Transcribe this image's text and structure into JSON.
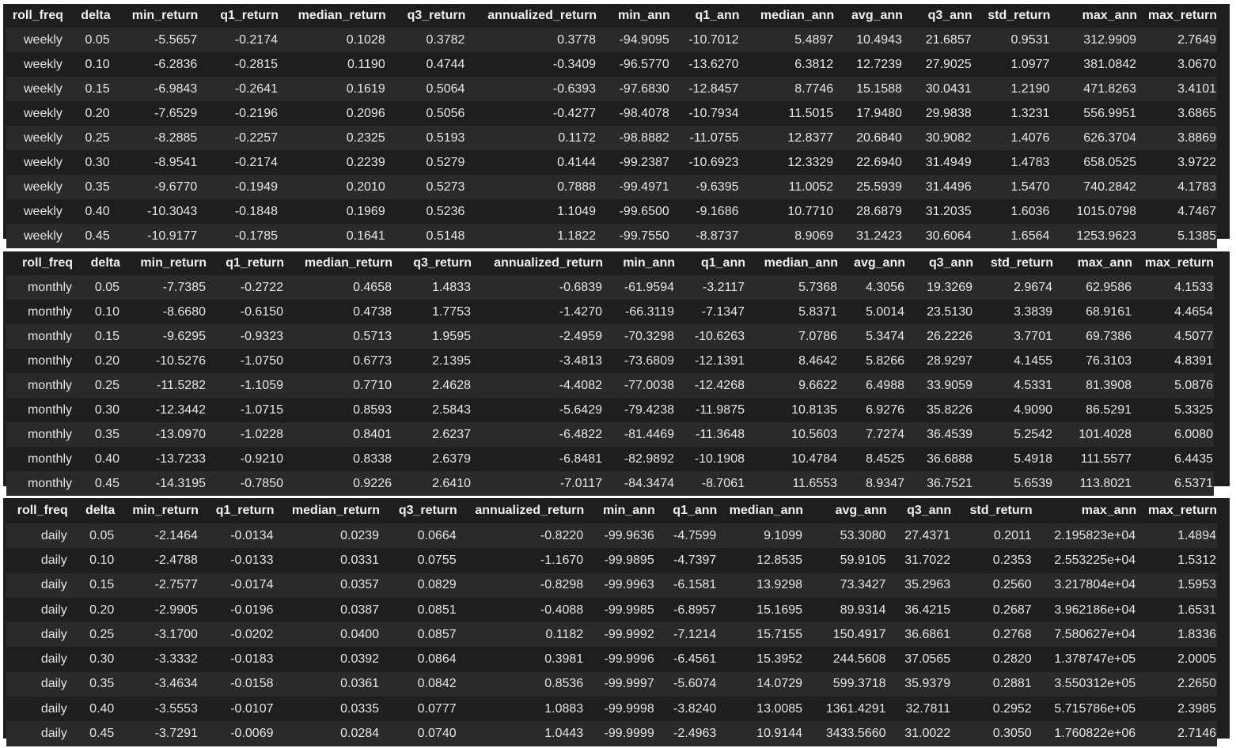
{
  "tables": [
    {
      "columns": [
        "roll_freq",
        "delta",
        "min_return",
        "q1_return",
        "median_return",
        "q3_return",
        "annualized_return",
        "min_ann",
        "q1_ann",
        "median_ann",
        "avg_ann",
        "q3_ann",
        "std_return",
        "max_ann",
        "max_return"
      ],
      "rows": [
        [
          "weekly",
          "0.05",
          "-5.5657",
          "-0.2174",
          "0.1028",
          "0.3782",
          "0.3778",
          "-94.9095",
          "-10.7012",
          "5.4897",
          "10.4943",
          "21.6857",
          "0.9531",
          "312.9909",
          "2.7649"
        ],
        [
          "weekly",
          "0.10",
          "-6.2836",
          "-0.2815",
          "0.1190",
          "0.4744",
          "-0.3409",
          "-96.5770",
          "-13.6270",
          "6.3812",
          "12.7239",
          "27.9025",
          "1.0977",
          "381.0842",
          "3.0670"
        ],
        [
          "weekly",
          "0.15",
          "-6.9843",
          "-0.2641",
          "0.1619",
          "0.5064",
          "-0.6393",
          "-97.6830",
          "-12.8457",
          "8.7746",
          "15.1588",
          "30.0431",
          "1.2190",
          "471.8263",
          "3.4101"
        ],
        [
          "weekly",
          "0.20",
          "-7.6529",
          "-0.2196",
          "0.2096",
          "0.5056",
          "-0.4277",
          "-98.4078",
          "-10.7934",
          "11.5015",
          "17.9480",
          "29.9838",
          "1.3231",
          "556.9951",
          "3.6865"
        ],
        [
          "weekly",
          "0.25",
          "-8.2885",
          "-0.2257",
          "0.2325",
          "0.5193",
          "0.1172",
          "-98.8882",
          "-11.0755",
          "12.8377",
          "20.6840",
          "30.9082",
          "1.4076",
          "626.3704",
          "3.8869"
        ],
        [
          "weekly",
          "0.30",
          "-8.9541",
          "-0.2174",
          "0.2239",
          "0.5279",
          "0.4144",
          "-99.2387",
          "-10.6923",
          "12.3329",
          "22.6940",
          "31.4949",
          "1.4783",
          "658.0525",
          "3.9722"
        ],
        [
          "weekly",
          "0.35",
          "-9.6770",
          "-0.1949",
          "0.2010",
          "0.5273",
          "0.7888",
          "-99.4971",
          "-9.6395",
          "11.0052",
          "25.5939",
          "31.4496",
          "1.5470",
          "740.2842",
          "4.1783"
        ],
        [
          "weekly",
          "0.40",
          "-10.3043",
          "-0.1848",
          "0.1969",
          "0.5236",
          "1.1049",
          "-99.6500",
          "-9.1686",
          "10.7710",
          "28.6879",
          "31.2035",
          "1.6036",
          "1015.0798",
          "4.7467"
        ],
        [
          "weekly",
          "0.45",
          "-10.9177",
          "-0.1785",
          "0.1641",
          "0.5148",
          "1.1822",
          "-99.7550",
          "-8.8737",
          "8.9069",
          "31.2423",
          "30.6064",
          "1.6564",
          "1253.9623",
          "5.1385"
        ]
      ]
    },
    {
      "columns": [
        "roll_freq",
        "delta",
        "min_return",
        "q1_return",
        "median_return",
        "q3_return",
        "annualized_return",
        "min_ann",
        "q1_ann",
        "median_ann",
        "avg_ann",
        "q3_ann",
        "std_return",
        "max_ann",
        "max_return"
      ],
      "rows": [
        [
          "monthly",
          "0.05",
          "-7.7385",
          "-0.2722",
          "0.4658",
          "1.4833",
          "-0.6839",
          "-61.9594",
          "-3.2117",
          "5.7368",
          "4.3056",
          "19.3269",
          "2.9674",
          "62.9586",
          "4.1533"
        ],
        [
          "monthly",
          "0.10",
          "-8.6680",
          "-0.6150",
          "0.4738",
          "1.7753",
          "-1.4270",
          "-66.3119",
          "-7.1347",
          "5.8371",
          "5.0014",
          "23.5130",
          "3.3839",
          "68.9161",
          "4.4654"
        ],
        [
          "monthly",
          "0.15",
          "-9.6295",
          "-0.9323",
          "0.5713",
          "1.9595",
          "-2.4959",
          "-70.3298",
          "-10.6263",
          "7.0786",
          "5.3474",
          "26.2226",
          "3.7701",
          "69.7386",
          "4.5077"
        ],
        [
          "monthly",
          "0.20",
          "-10.5276",
          "-1.0750",
          "0.6773",
          "2.1395",
          "-3.4813",
          "-73.6809",
          "-12.1391",
          "8.4642",
          "5.8266",
          "28.9297",
          "4.1455",
          "76.3103",
          "4.8391"
        ],
        [
          "monthly",
          "0.25",
          "-11.5282",
          "-1.1059",
          "0.7710",
          "2.4628",
          "-4.4082",
          "-77.0038",
          "-12.4268",
          "9.6622",
          "6.4988",
          "33.9059",
          "4.5331",
          "81.3908",
          "5.0876"
        ],
        [
          "monthly",
          "0.30",
          "-12.3442",
          "-1.0715",
          "0.8593",
          "2.5843",
          "-5.6429",
          "-79.4238",
          "-11.9875",
          "10.8135",
          "6.9276",
          "35.8226",
          "4.9090",
          "86.5291",
          "5.3325"
        ],
        [
          "monthly",
          "0.35",
          "-13.0970",
          "-1.0228",
          "0.8401",
          "2.6237",
          "-6.4822",
          "-81.4469",
          "-11.3648",
          "10.5603",
          "7.7274",
          "36.4539",
          "5.2542",
          "101.4028",
          "6.0080"
        ],
        [
          "monthly",
          "0.40",
          "-13.7233",
          "-0.9210",
          "0.8338",
          "2.6379",
          "-6.8481",
          "-82.9892",
          "-10.1908",
          "10.4784",
          "8.4525",
          "36.6888",
          "5.4918",
          "111.5577",
          "6.4435"
        ],
        [
          "monthly",
          "0.45",
          "-14.3195",
          "-0.7850",
          "0.9226",
          "2.6410",
          "-7.0117",
          "-84.3474",
          "-8.7061",
          "11.6553",
          "8.9347",
          "36.7521",
          "5.6539",
          "113.8021",
          "6.5371"
        ]
      ]
    },
    {
      "columns": [
        "roll_freq",
        "delta",
        "min_return",
        "q1_return",
        "median_return",
        "q3_return",
        "annualized_return",
        "min_ann",
        "q1_ann",
        "median_ann",
        "avg_ann",
        "q3_ann",
        "std_return",
        "max_ann",
        "max_return"
      ],
      "rows": [
        [
          "daily",
          "0.05",
          "-2.1464",
          "-0.0134",
          "0.0239",
          "0.0664",
          "-0.8220",
          "-99.9636",
          "-4.7599",
          "9.1099",
          "53.3080",
          "27.4371",
          "0.2011",
          "2.195823e+04",
          "1.4894"
        ],
        [
          "daily",
          "0.10",
          "-2.4788",
          "-0.0133",
          "0.0331",
          "0.0755",
          "-1.1670",
          "-99.9895",
          "-4.7397",
          "12.8535",
          "59.9105",
          "31.7022",
          "0.2353",
          "2.553225e+04",
          "1.5312"
        ],
        [
          "daily",
          "0.15",
          "-2.7577",
          "-0.0174",
          "0.0357",
          "0.0829",
          "-0.8298",
          "-99.9963",
          "-6.1581",
          "13.9298",
          "73.3427",
          "35.2963",
          "0.2560",
          "3.217804e+04",
          "1.5953"
        ],
        [
          "daily",
          "0.20",
          "-2.9905",
          "-0.0196",
          "0.0387",
          "0.0851",
          "-0.4088",
          "-99.9985",
          "-6.8957",
          "15.1695",
          "89.9314",
          "36.4215",
          "0.2687",
          "3.962186e+04",
          "1.6531"
        ],
        [
          "daily",
          "0.25",
          "-3.1700",
          "-0.0202",
          "0.0400",
          "0.0857",
          "0.1182",
          "-99.9992",
          "-7.1214",
          "15.7155",
          "150.4917",
          "36.6861",
          "0.2768",
          "7.580627e+04",
          "1.8336"
        ],
        [
          "daily",
          "0.30",
          "-3.3332",
          "-0.0183",
          "0.0392",
          "0.0864",
          "0.3981",
          "-99.9996",
          "-6.4561",
          "15.3952",
          "244.5608",
          "37.0565",
          "0.2820",
          "1.378747e+05",
          "2.0005"
        ],
        [
          "daily",
          "0.35",
          "-3.4634",
          "-0.0158",
          "0.0361",
          "0.0842",
          "0.8536",
          "-99.9997",
          "-5.6074",
          "14.0729",
          "599.3718",
          "35.9379",
          "0.2881",
          "3.550312e+05",
          "2.2650"
        ],
        [
          "daily",
          "0.40",
          "-3.5553",
          "-0.0107",
          "0.0335",
          "0.0777",
          "1.0883",
          "-99.9998",
          "-3.8240",
          "13.0085",
          "1361.4291",
          "32.7811",
          "0.2952",
          "5.715786e+05",
          "2.3985"
        ],
        [
          "daily",
          "0.45",
          "-3.7291",
          "-0.0069",
          "0.0284",
          "0.0740",
          "1.0443",
          "-99.9999",
          "-2.4963",
          "10.9144",
          "3433.5660",
          "31.0022",
          "0.3050",
          "1.760822e+06",
          "2.7146"
        ]
      ]
    }
  ]
}
